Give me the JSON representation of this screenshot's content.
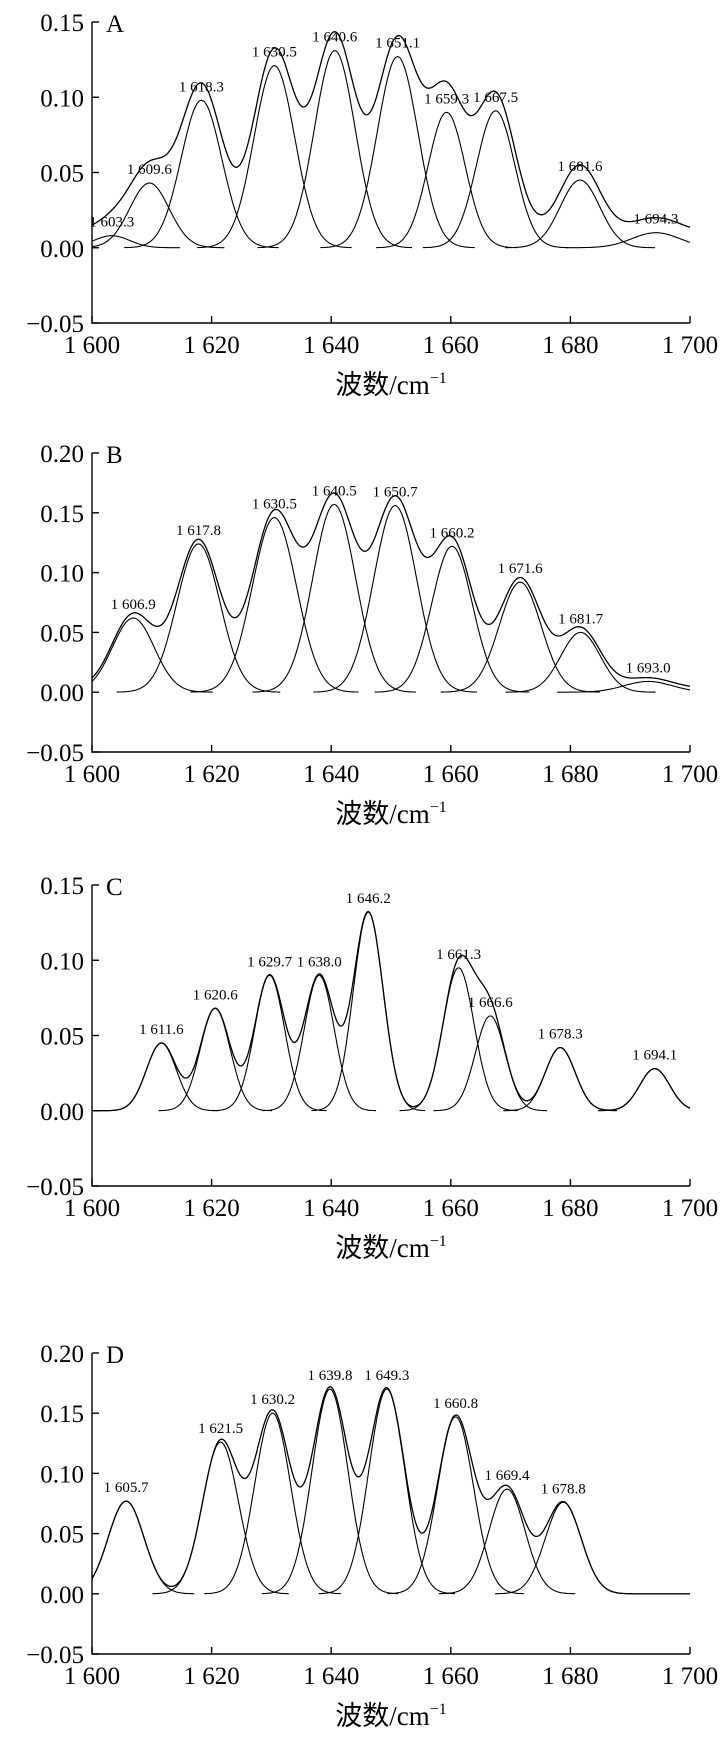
{
  "chart_data": [
    {
      "type": "line",
      "panel_label": "A",
      "xlabel": "波数/cm",
      "xlabel_sup": "−1",
      "xlim": [
        1600,
        1700
      ],
      "ylim": [
        -0.05,
        0.15
      ],
      "x_ticks": [
        1600,
        1620,
        1640,
        1660,
        1680,
        1700
      ],
      "x_tick_labels": [
        "1 600",
        "1 620",
        "1 640",
        "1 660",
        "1 680",
        "1 700"
      ],
      "y_ticks": [
        0.15,
        0.1,
        0.05,
        0.0,
        -0.05
      ],
      "y_tick_labels": [
        "0.15",
        "0.10",
        "0.05",
        "0.00",
        "−0.05"
      ],
      "grid": false,
      "envelope_baseline": 0.01,
      "peaks": [
        {
          "label": "1 603.3",
          "center": 1603.3,
          "height": 0.008,
          "width": 3.0
        },
        {
          "label": "1 609.6",
          "center": 1609.6,
          "height": 0.043,
          "width": 3.3
        },
        {
          "label": "1 618.3",
          "center": 1618.3,
          "height": 0.098,
          "width": 3.4
        },
        {
          "label": "1 630.5",
          "center": 1630.5,
          "height": 0.121,
          "width": 3.4
        },
        {
          "label": "1 640.6",
          "center": 1640.6,
          "height": 0.131,
          "width": 3.4
        },
        {
          "label": "1 651.1",
          "center": 1651.1,
          "height": 0.127,
          "width": 3.4
        },
        {
          "label": "1 659.3",
          "center": 1659.3,
          "height": 0.09,
          "width": 3.1
        },
        {
          "label": "1 667.5",
          "center": 1667.5,
          "height": 0.091,
          "width": 3.2
        },
        {
          "label": "1 681.6",
          "center": 1681.6,
          "height": 0.045,
          "width": 3.3
        },
        {
          "label": "1 694.3",
          "center": 1694.3,
          "height": 0.01,
          "width": 4.0
        }
      ]
    },
    {
      "type": "line",
      "panel_label": "B",
      "xlabel": "波数/cm",
      "xlabel_sup": "−1",
      "xlim": [
        1600,
        1700
      ],
      "ylim": [
        -0.05,
        0.2
      ],
      "x_ticks": [
        1600,
        1620,
        1640,
        1660,
        1680,
        1700
      ],
      "x_tick_labels": [
        "1 600",
        "1 620",
        "1 640",
        "1 660",
        "1 680",
        "1 700"
      ],
      "y_ticks": [
        0.2,
        0.15,
        0.1,
        0.05,
        0.0,
        -0.05
      ],
      "y_tick_labels": [
        "0.20",
        "0.15",
        "0.10",
        "0.05",
        "0.00",
        "−0.05"
      ],
      "grid": false,
      "envelope_baseline": 0.003,
      "peaks": [
        {
          "label": "1 606.9",
          "center": 1606.9,
          "height": 0.062,
          "width": 3.5
        },
        {
          "label": "1 617.8",
          "center": 1617.8,
          "height": 0.124,
          "width": 3.6
        },
        {
          "label": "1 630.5",
          "center": 1630.5,
          "height": 0.146,
          "width": 3.7
        },
        {
          "label": "1 640.5",
          "center": 1640.5,
          "height": 0.157,
          "width": 3.6
        },
        {
          "label": "1 650.7",
          "center": 1650.7,
          "height": 0.156,
          "width": 3.6
        },
        {
          "label": "1 660.2",
          "center": 1660.2,
          "height": 0.122,
          "width": 3.4
        },
        {
          "label": "1 671.6",
          "center": 1671.6,
          "height": 0.092,
          "width": 3.5
        },
        {
          "label": "1 681.7",
          "center": 1681.7,
          "height": 0.05,
          "width": 3.3
        },
        {
          "label": "1 693.0",
          "center": 1693.0,
          "height": 0.009,
          "width": 4.0
        }
      ]
    },
    {
      "type": "line",
      "panel_label": "C",
      "xlabel": "波数/cm",
      "xlabel_sup": "−1",
      "xlim": [
        1600,
        1700
      ],
      "ylim": [
        -0.05,
        0.15
      ],
      "x_ticks": [
        1600,
        1620,
        1640,
        1660,
        1680,
        1700
      ],
      "x_tick_labels": [
        "1 600",
        "1 620",
        "1 640",
        "1 660",
        "1 680",
        "1 700"
      ],
      "y_ticks": [
        0.15,
        0.1,
        0.05,
        0.0,
        -0.05
      ],
      "y_tick_labels": [
        "0.15",
        "0.10",
        "0.05",
        "0.00",
        "−0.05"
      ],
      "grid": false,
      "envelope_baseline": 0.0,
      "peaks": [
        {
          "label": "1 611.6",
          "center": 1611.6,
          "height": 0.045,
          "width": 2.5
        },
        {
          "label": "1 620.6",
          "center": 1620.6,
          "height": 0.068,
          "width": 2.5
        },
        {
          "label": "1 629.7",
          "center": 1629.7,
          "height": 0.09,
          "width": 2.5
        },
        {
          "label": "1 638.0",
          "center": 1638.0,
          "height": 0.09,
          "width": 2.5
        },
        {
          "label": "1 646.2",
          "center": 1646.2,
          "height": 0.132,
          "width": 2.5
        },
        {
          "label": "1 661.3",
          "center": 1661.3,
          "height": 0.095,
          "width": 2.6
        },
        {
          "label": "1 666.6",
          "center": 1666.6,
          "height": 0.063,
          "width": 2.5
        },
        {
          "label": "1 678.3",
          "center": 1678.3,
          "height": 0.042,
          "width": 2.5
        },
        {
          "label": "1 694.1",
          "center": 1694.1,
          "height": 0.028,
          "width": 2.5
        }
      ]
    },
    {
      "type": "line",
      "panel_label": "D",
      "xlabel": "波数/cm",
      "xlabel_sup": "−1",
      "xlim": [
        1600,
        1700
      ],
      "ylim": [
        -0.05,
        0.2
      ],
      "x_ticks": [
        1600,
        1620,
        1640,
        1660,
        1680,
        1700
      ],
      "x_tick_labels": [
        "1 600",
        "1 620",
        "1 640",
        "1 660",
        "1 680",
        "1 700"
      ],
      "y_ticks": [
        0.2,
        0.15,
        0.1,
        0.05,
        0.0,
        -0.05
      ],
      "y_tick_labels": [
        "0.20",
        "0.15",
        "0.10",
        "0.05",
        "0.00",
        "−0.05"
      ],
      "grid": false,
      "envelope_baseline": 0.0,
      "peaks": [
        {
          "label": "1 605.7",
          "center": 1605.7,
          "height": 0.077,
          "width": 3.0
        },
        {
          "label": "1 621.5",
          "center": 1621.5,
          "height": 0.126,
          "width": 3.0
        },
        {
          "label": "1 630.2",
          "center": 1630.2,
          "height": 0.15,
          "width": 3.0
        },
        {
          "label": "1 639.8",
          "center": 1639.8,
          "height": 0.17,
          "width": 3.0
        },
        {
          "label": "1 649.3",
          "center": 1649.3,
          "height": 0.17,
          "width": 3.0
        },
        {
          "label": "1 660.8",
          "center": 1660.8,
          "height": 0.147,
          "width": 3.0
        },
        {
          "label": "1 669.4",
          "center": 1669.4,
          "height": 0.087,
          "width": 3.0
        },
        {
          "label": "1 678.8",
          "center": 1678.8,
          "height": 0.076,
          "width": 3.0
        }
      ]
    }
  ]
}
